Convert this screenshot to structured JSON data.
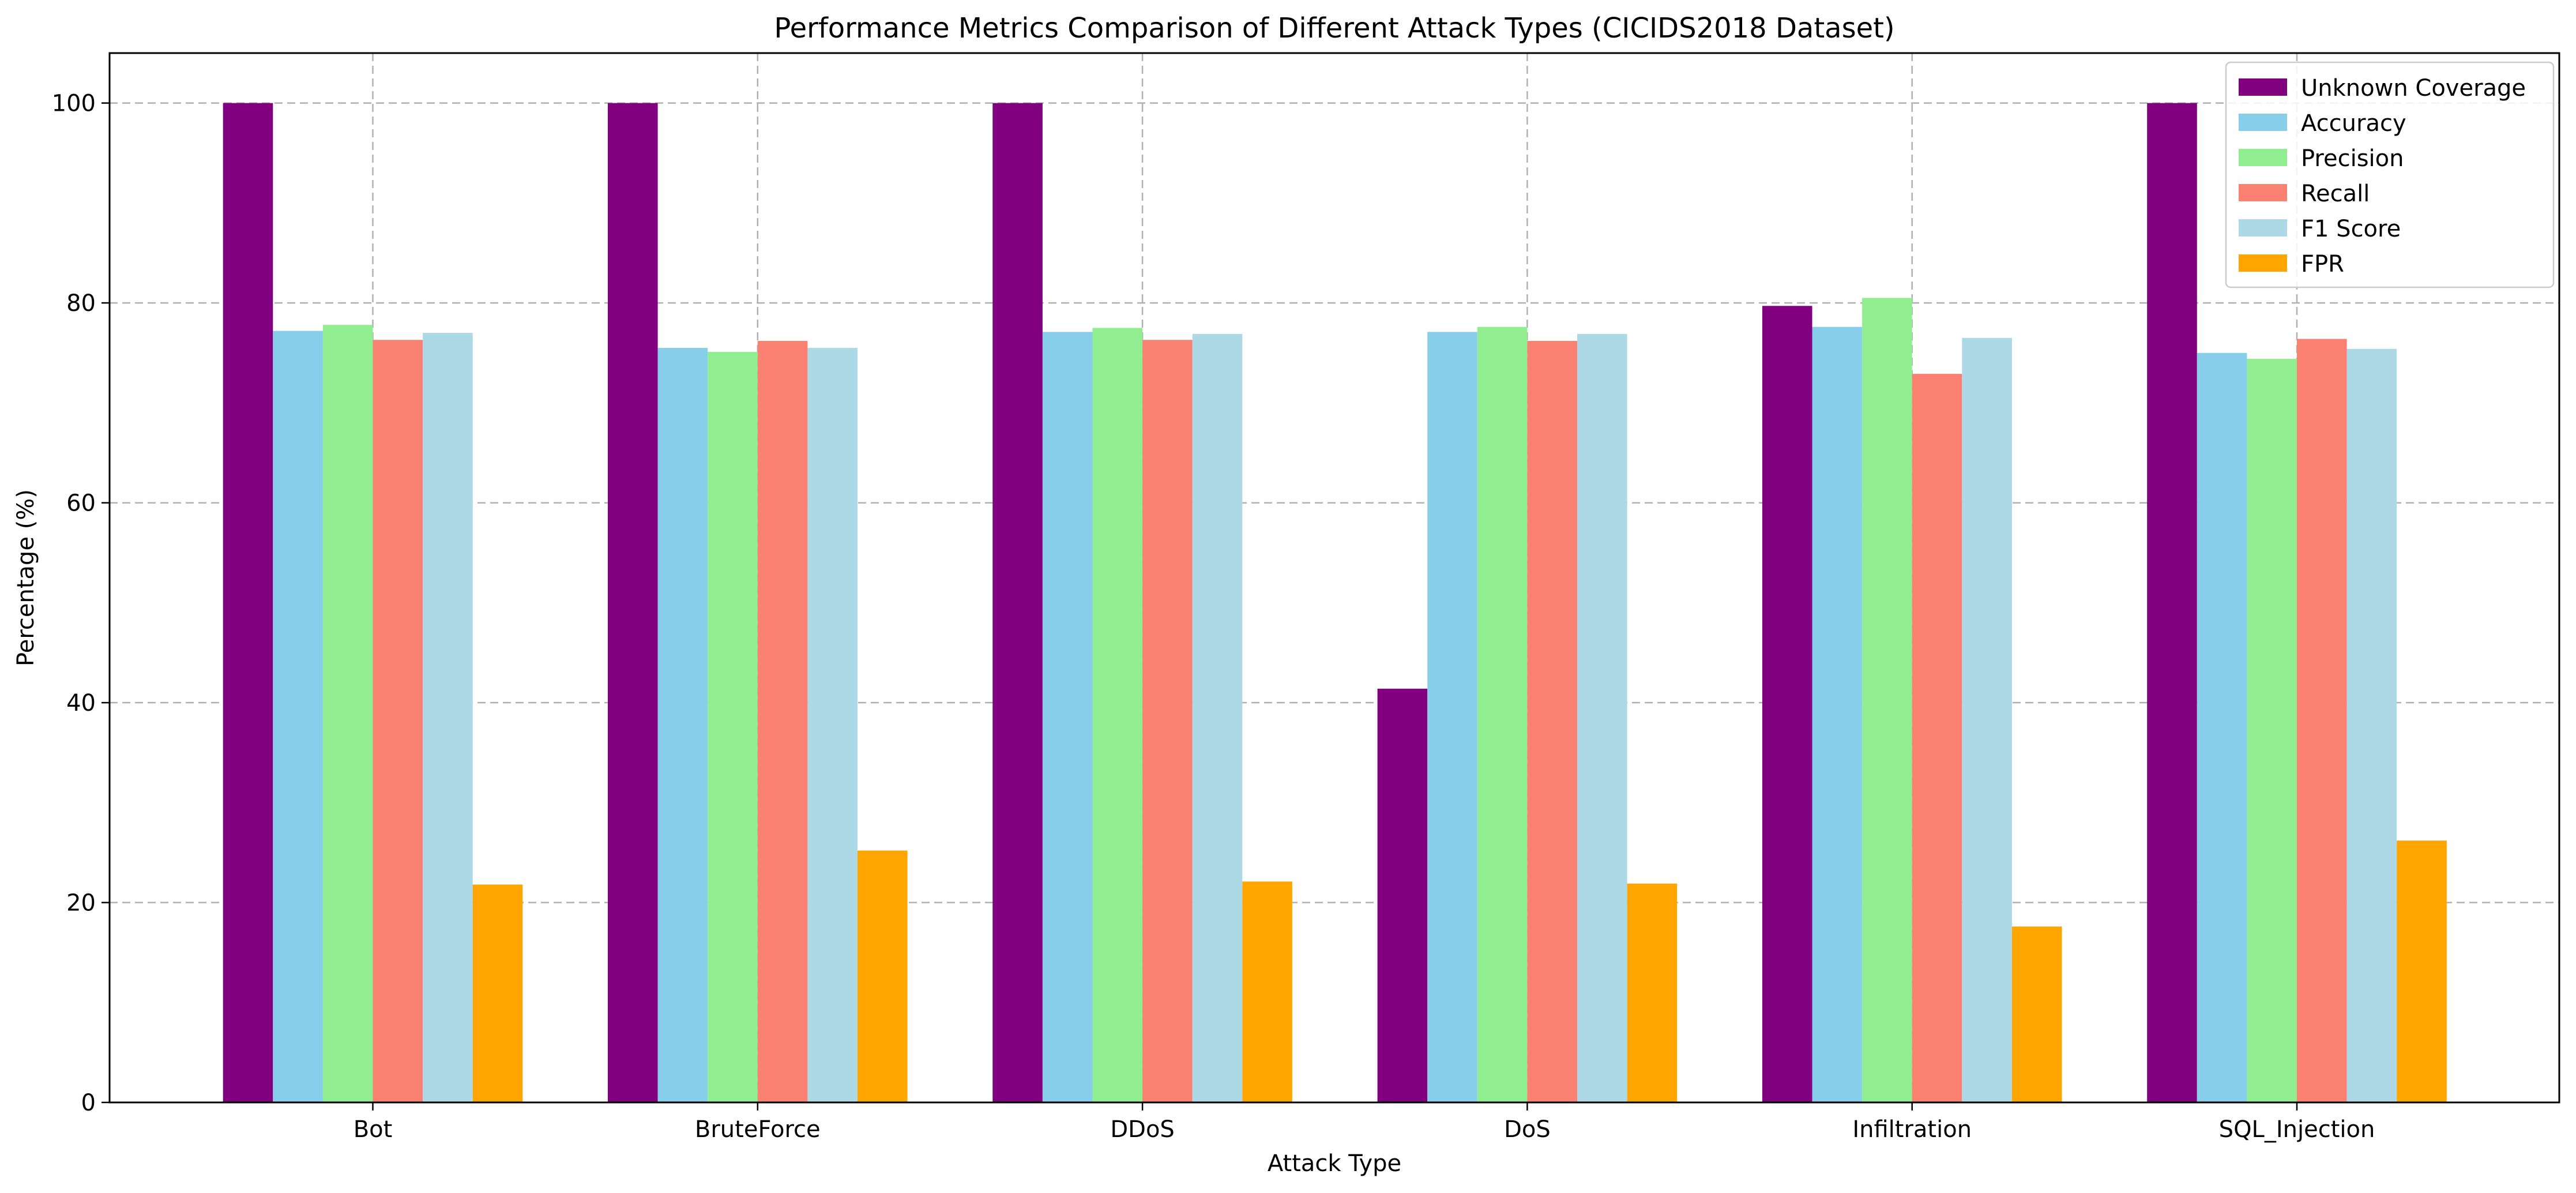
{
  "chart_data": {
    "type": "bar",
    "title": "Performance Metrics Comparison of Different Attack Types (CICIDS2018 Dataset)",
    "xlabel": "Attack Type",
    "ylabel": "Percentage (%)",
    "ylim": [
      0,
      105
    ],
    "yticks": [
      "0",
      "20",
      "40",
      "60",
      "80",
      "100"
    ],
    "grid": true,
    "legend_position": "top-right",
    "categories": [
      "Bot",
      "BruteForce",
      "DDoS",
      "DoS",
      "Infiltration",
      "SQL_Injection"
    ],
    "series": [
      {
        "name": "Unknown Coverage",
        "color": "#800080",
        "values": [
          100,
          100,
          100,
          41.4,
          79.7,
          100
        ]
      },
      {
        "name": "Accuracy",
        "color": "#87CEEB",
        "values": [
          77.2,
          75.5,
          77.1,
          77.1,
          77.6,
          75.0
        ]
      },
      {
        "name": "Precision",
        "color": "#90EE90",
        "values": [
          77.8,
          75.1,
          77.5,
          77.6,
          80.5,
          74.4
        ]
      },
      {
        "name": "Recall",
        "color": "#FA8072",
        "values": [
          76.3,
          76.2,
          76.3,
          76.2,
          72.9,
          76.4
        ]
      },
      {
        "name": "F1 Score",
        "color": "#ADD8E6",
        "values": [
          77.0,
          75.5,
          76.9,
          76.9,
          76.5,
          75.4
        ]
      },
      {
        "name": "FPR",
        "color": "#FFA500",
        "values": [
          21.8,
          25.2,
          22.1,
          21.9,
          17.6,
          26.2
        ]
      }
    ]
  }
}
